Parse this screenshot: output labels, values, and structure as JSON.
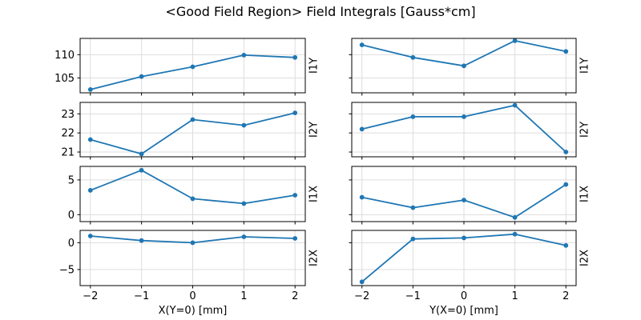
{
  "figure": {
    "title": "<Good Field Region> Field Integrals [Gauss*cm]"
  },
  "chart_data": {
    "type": "line",
    "title": "<Good Field Region> Field Integrals [Gauss*cm]",
    "x": [
      -2,
      -1,
      0,
      1,
      2
    ],
    "xticks": [
      -2,
      -1,
      0,
      1,
      2
    ],
    "xtick_labels": [
      "−2",
      "−1",
      "0",
      "1",
      "2"
    ],
    "xlim": [
      -2.2,
      2.2
    ],
    "grid": true,
    "legend": "none",
    "marker": "o",
    "line_color": "#1f77b4",
    "grid_color": "#dddddd",
    "spine_color": "#000000",
    "text_color": "#000000",
    "columns": [
      {
        "xlabel": "X(Y=0) [mm]"
      },
      {
        "xlabel": "Y(X=0) [mm]"
      }
    ],
    "rows": [
      {
        "ylabel": "I1Y",
        "yticks": [
          105,
          110
        ],
        "ytick_labels": [
          "105",
          "110"
        ],
        "ylim": [
          101.8,
          113.5
        ],
        "series": [
          {
            "values": [
              102.5,
              105.3,
              107.4,
              109.9,
              109.4
            ]
          },
          {
            "values": [
              112.1,
              109.4,
              107.6,
              113.0,
              110.7
            ]
          }
        ]
      },
      {
        "ylabel": "I2Y",
        "yticks": [
          21,
          22,
          23
        ],
        "ytick_labels": [
          "21",
          "22",
          "23"
        ],
        "ylim": [
          20.75,
          23.6
        ],
        "series": [
          {
            "values": [
              21.65,
              20.9,
              22.7,
              22.4,
              23.05
            ]
          },
          {
            "values": [
              22.2,
              22.85,
              22.85,
              23.45,
              21.0
            ]
          }
        ]
      },
      {
        "ylabel": "I1X",
        "yticks": [
          0,
          5
        ],
        "ytick_labels": [
          "0",
          "5"
        ],
        "ylim": [
          -1.0,
          6.95
        ],
        "series": [
          {
            "values": [
              3.5,
              6.4,
              2.3,
              1.6,
              2.8
            ]
          },
          {
            "values": [
              2.5,
              1.0,
              2.1,
              -0.4,
              4.35
            ]
          }
        ]
      },
      {
        "ylabel": "I2X",
        "yticks": [
          -5,
          0
        ],
        "ytick_labels": [
          "−5",
          "0"
        ],
        "ylim": [
          -8.0,
          2.3
        ],
        "series": [
          {
            "values": [
              1.25,
              0.4,
              0.0,
              1.1,
              0.8
            ]
          },
          {
            "values": [
              -7.3,
              0.7,
              0.9,
              1.6,
              -0.5
            ]
          }
        ]
      }
    ]
  }
}
